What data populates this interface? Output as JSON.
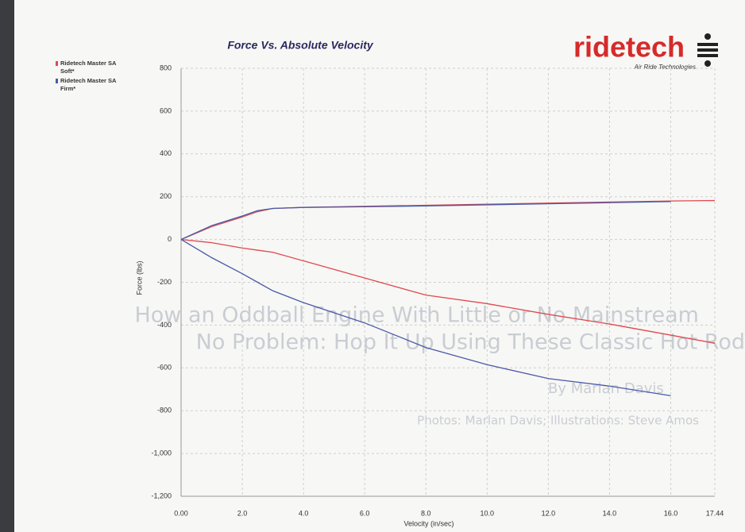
{
  "chart_data": {
    "type": "line",
    "title": "Force Vs. Absolute Velocity",
    "brand": "ridetech",
    "brand_tagline": "Air Ride Technologies",
    "x_label": "Velocity (in/sec)",
    "y_label": "Force (lbs)",
    "x": [
      0,
      1,
      2,
      2.5,
      3,
      4,
      6,
      8,
      10,
      12,
      14,
      16,
      17.44
    ],
    "series": [
      {
        "name": "Ridetech Master SA Soft*",
        "color": "#e0484e",
        "values": [
          0,
          60,
          105,
          130,
          145,
          150,
          155,
          160,
          165,
          170,
          175,
          180,
          182
        ],
        "values_2": [
          0,
          -15,
          -40,
          -50,
          -60,
          -100,
          -180,
          -260,
          -300,
          -350,
          -395,
          -447,
          -485
        ]
      },
      {
        "name": "Ridetech Master SA Firm*",
        "color": "#4a5aa8",
        "values": [
          0,
          65,
          110,
          135,
          145,
          150,
          153,
          157,
          162,
          167,
          172,
          177,
          null
        ],
        "values_2": [
          0,
          -85,
          -160,
          -200,
          -240,
          -295,
          -390,
          -505,
          -585,
          -650,
          -685,
          -730,
          null
        ]
      }
    ],
    "xlim": [
      0,
      17.44
    ],
    "ylim": [
      -1200,
      800
    ],
    "xticks": [
      {
        "value": 0,
        "label": "0.00"
      },
      {
        "value": 2,
        "label": "2.0"
      },
      {
        "value": 4,
        "label": "4.0"
      },
      {
        "value": 6,
        "label": "6.0"
      },
      {
        "value": 8,
        "label": "8.0"
      },
      {
        "value": 10,
        "label": "10.0"
      },
      {
        "value": 12,
        "label": "12.0"
      },
      {
        "value": 14,
        "label": "14.0"
      },
      {
        "value": 16,
        "label": "16.0"
      },
      17.44
    ],
    "yticks": [
      800,
      600,
      400,
      200,
      0,
      -200,
      -400,
      -600,
      -800,
      {
        "value": -1000,
        "label": "-1,000"
      },
      {
        "value": -1200,
        "label": "-1,200"
      }
    ],
    "grid": true,
    "legend": "top-left"
  },
  "background_text": [
    "How an Oddball Engine With Little or No Mainstream",
    "No Problem: Hop It Up Using These Classic Hot Rod",
    "By Marlan Davis",
    "Photos: Marlan Davis; Illustrations: Steve Amos"
  ]
}
